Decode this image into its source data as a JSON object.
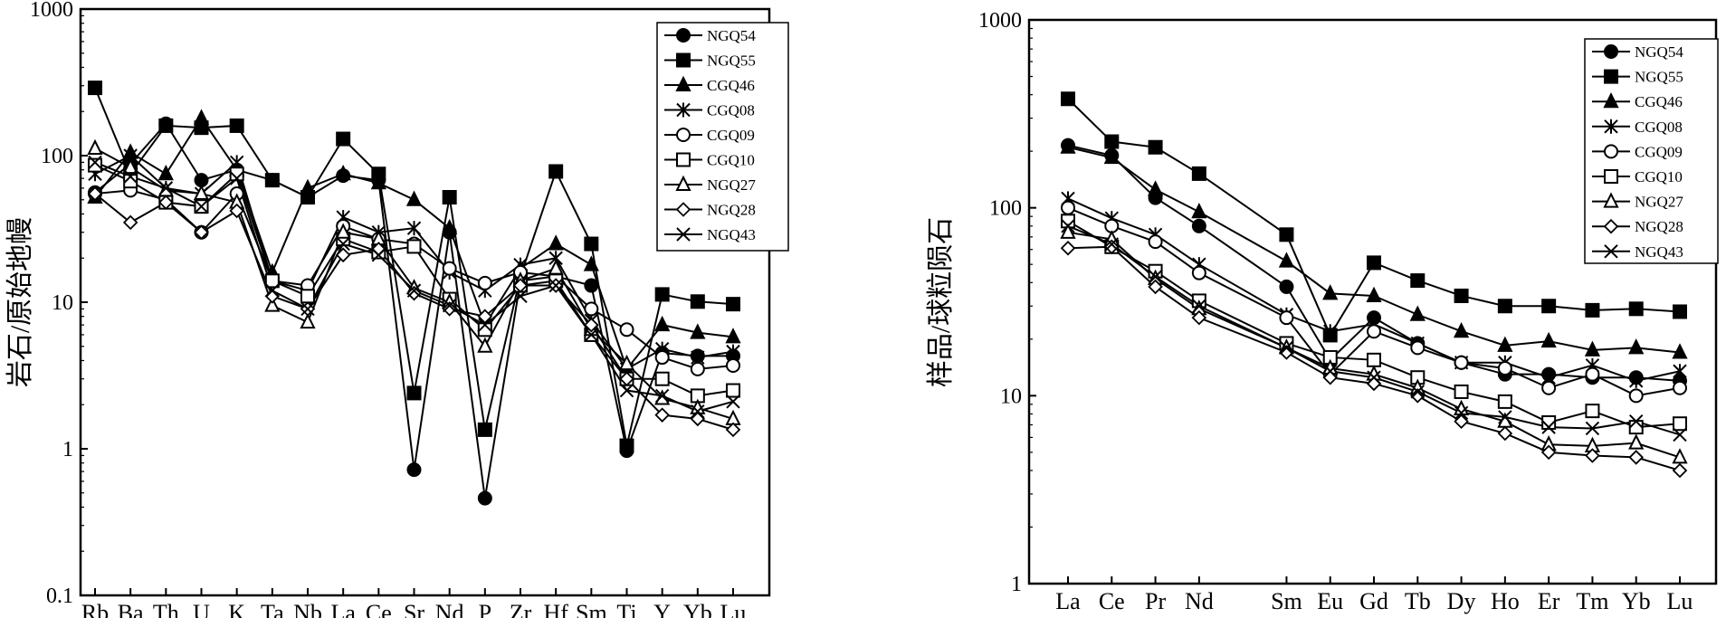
{
  "chart_data": [
    {
      "type": "line",
      "scale": "log",
      "ylabel": "岩石/原始地幔",
      "ylim": [
        0.1,
        1000
      ],
      "yticks": [
        "0.1",
        "1",
        "10",
        "100",
        "1000"
      ],
      "categories": [
        "Rb",
        "Ba",
        "Th",
        "U",
        "K",
        "Ta",
        "Nb",
        "La",
        "Ce",
        "Sr",
        "Nd",
        "P",
        "Zr",
        "Hf",
        "Sm",
        "Ti",
        "Y",
        "Yb",
        "Lu"
      ],
      "x_positions": [
        1,
        2,
        3,
        4,
        5,
        6,
        7,
        8,
        9,
        10,
        11,
        12,
        13,
        14,
        15,
        16,
        17,
        18,
        19
      ],
      "legend_position": "top-right",
      "series": [
        {
          "name": "NGQ54",
          "marker": "circle-filled",
          "values": [
            56,
            88,
            165,
            68,
            80,
            68,
            52,
            73,
            68,
            0.72,
            30,
            0.46,
            14,
            15,
            13,
            0.97,
            4.5,
            4.3,
            4.3
          ]
        },
        {
          "name": "NGQ55",
          "marker": "square-filled",
          "values": [
            290,
            75,
            160,
            155,
            160,
            68,
            52,
            130,
            75,
            2.4,
            52,
            1.35,
            15,
            78,
            25,
            1.05,
            11.3,
            10.1,
            9.7
          ]
        },
        {
          "name": "CGQ46",
          "marker": "triangle-filled",
          "values": [
            52,
            105,
            75,
            180,
            80,
            16,
            60,
            75,
            65,
            50,
            32,
            7,
            17,
            25,
            18,
            3.5,
            7,
            6.2,
            5.8
          ]
        },
        {
          "name": "CGQ08",
          "marker": "star",
          "values": [
            75,
            100,
            60,
            55,
            90,
            14,
            12,
            38,
            30,
            32,
            16,
            12,
            18,
            20,
            7.5,
            3.5,
            4.8,
            4.2,
            4.6
          ]
        },
        {
          "name": "CGQ09",
          "marker": "circle-open",
          "values": [
            55,
            58,
            50,
            30,
            55,
            14,
            13,
            33,
            27,
            25,
            17,
            13.5,
            16,
            15,
            9,
            6.5,
            4.2,
            3.5,
            3.7
          ]
        },
        {
          "name": "CGQ10",
          "marker": "square-open",
          "values": [
            86,
            67,
            48,
            45,
            75,
            14,
            11,
            27,
            22,
            24,
            10.5,
            6.5,
            13,
            14,
            6,
            3,
            3,
            2.3,
            2.5
          ]
        },
        {
          "name": "NGQ27",
          "marker": "triangle-open",
          "values": [
            112,
            83,
            58,
            55,
            48,
            9.5,
            7.3,
            30,
            27,
            12.5,
            10,
            5,
            14,
            17,
            6.5,
            3.8,
            2.2,
            1.9,
            1.6
          ]
        },
        {
          "name": "NGQ28",
          "marker": "diamond-open",
          "values": [
            55,
            35,
            48,
            30,
            42,
            11,
            9,
            21,
            23,
            11.5,
            9,
            8,
            13,
            13,
            7,
            3,
            1.7,
            1.6,
            1.35
          ]
        },
        {
          "name": "NGQ43",
          "marker": "x",
          "values": [
            90,
            72,
            60,
            45,
            70,
            12,
            9,
            25,
            21,
            12,
            9.5,
            7,
            11,
            13,
            6,
            2.5,
            2.3,
            1.8,
            2.1
          ]
        }
      ]
    },
    {
      "type": "line",
      "scale": "log",
      "ylabel": "样品/球粒陨石",
      "ylim": [
        1,
        1000
      ],
      "yticks": [
        "1",
        "10",
        "100",
        "1000"
      ],
      "categories": [
        "La",
        "Ce",
        "Pr",
        "Nd",
        "Sm",
        "Eu",
        "Gd",
        "Tb",
        "Dy",
        "Ho",
        "Er",
        "Tm",
        "Yb",
        "Lu"
      ],
      "x_positions": [
        1,
        2,
        3,
        4,
        6,
        7,
        8,
        9,
        10,
        11,
        12,
        13,
        14,
        15
      ],
      "legend_position": "top-right",
      "series": [
        {
          "name": "NGQ54",
          "marker": "circle-filled",
          "values": [
            215,
            190,
            113,
            80,
            38,
            15.5,
            26,
            19,
            15,
            13,
            13,
            12.5,
            12.5,
            12
          ]
        },
        {
          "name": "NGQ55",
          "marker": "square-filled",
          "values": [
            380,
            225,
            210,
            152,
            72,
            21,
            51,
            41,
            34,
            30,
            30,
            28.5,
            29,
            28
          ]
        },
        {
          "name": "CGQ46",
          "marker": "triangle-filled",
          "values": [
            210,
            185,
            125,
            95,
            52,
            35,
            34,
            27,
            22,
            18.5,
            19.5,
            17.5,
            18,
            17
          ]
        },
        {
          "name": "CGQ08",
          "marker": "star",
          "values": [
            112,
            88,
            72,
            50,
            27,
            22,
            24,
            19,
            15,
            15,
            12.5,
            14.5,
            12,
            13.5
          ]
        },
        {
          "name": "CGQ09",
          "marker": "circle-open",
          "values": [
            100,
            80,
            66,
            45,
            26,
            13,
            22,
            18,
            15,
            14,
            11,
            13,
            10,
            11
          ]
        },
        {
          "name": "CGQ10",
          "marker": "square-open",
          "values": [
            85,
            62,
            46,
            32,
            19,
            16,
            15.5,
            12.5,
            10.5,
            9.3,
            7.2,
            8.3,
            6.8,
            7.1
          ]
        },
        {
          "name": "NGQ27",
          "marker": "triangle-open",
          "values": [
            74,
            68,
            42,
            29,
            18,
            14,
            13,
            11,
            8.5,
            7.3,
            5.5,
            5.4,
            5.6,
            4.7
          ]
        },
        {
          "name": "NGQ28",
          "marker": "diamond-open",
          "values": [
            61,
            62,
            38,
            26,
            17,
            12.5,
            11.6,
            10,
            7.3,
            6.3,
            5,
            4.8,
            4.7,
            4
          ]
        },
        {
          "name": "NGQ43",
          "marker": "x",
          "values": [
            80,
            64,
            43,
            30,
            18,
            13.5,
            12.5,
            10.5,
            8.1,
            7.7,
            6.8,
            6.7,
            7.3,
            6.2
          ]
        }
      ]
    }
  ]
}
